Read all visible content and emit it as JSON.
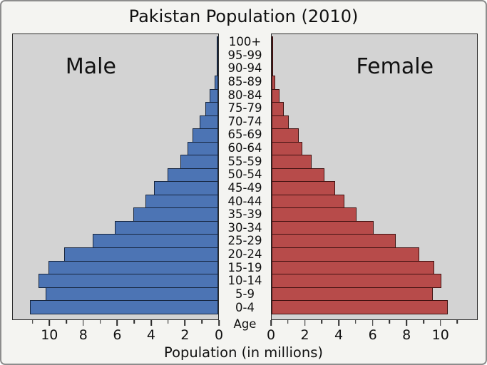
{
  "title": "Pakistan Population (2010)",
  "panels": {
    "male_label": "Male",
    "female_label": "Female"
  },
  "axis": {
    "xlabel": "Population (in millions)",
    "age_label": "Age",
    "major_ticks": [
      0,
      2,
      4,
      6,
      8,
      10
    ],
    "minor_ticks": [
      1,
      3,
      5,
      7,
      9,
      11
    ],
    "axis_max": 12.2
  },
  "colors": {
    "male_bar": "#4c74b4",
    "male_edge": "#16253e",
    "female_bar": "#b74b4a",
    "female_edge": "#401110",
    "plot_bg": "#d3d3d3",
    "figure_bg": "#f4f4f1"
  },
  "chart_data": {
    "type": "bar",
    "subtype": "population-pyramid",
    "title": "Pakistan Population (2010)",
    "xlabel": "Population (in millions)",
    "age_axis_label": "Age",
    "units": "millions of people",
    "x_axis_range_each_side": [
      0,
      12.2
    ],
    "grid": false,
    "categories_top_to_bottom": [
      "100+",
      "95-99",
      "90-94",
      "85-89",
      "80-84",
      "75-79",
      "70-74",
      "65-69",
      "60-64",
      "55-59",
      "50-54",
      "45-49",
      "40-44",
      "35-39",
      "30-34",
      "25-29",
      "20-24",
      "15-19",
      "10-14",
      "5-9",
      "0-4"
    ],
    "series": [
      {
        "name": "Male",
        "side": "left",
        "color": "#4c74b4",
        "values": [
          0.01,
          0.03,
          0.08,
          0.22,
          0.5,
          0.75,
          1.1,
          1.5,
          1.8,
          2.25,
          3.0,
          3.8,
          4.3,
          5.0,
          6.1,
          7.4,
          9.1,
          10.0,
          10.6,
          10.2,
          11.1
        ]
      },
      {
        "name": "Female",
        "side": "right",
        "color": "#b74b4a",
        "values": [
          0.01,
          0.03,
          0.08,
          0.21,
          0.45,
          0.7,
          1.0,
          1.6,
          1.8,
          2.35,
          3.1,
          3.75,
          4.3,
          5.0,
          6.0,
          7.3,
          8.7,
          9.6,
          10.0,
          9.5,
          10.4
        ]
      }
    ]
  }
}
